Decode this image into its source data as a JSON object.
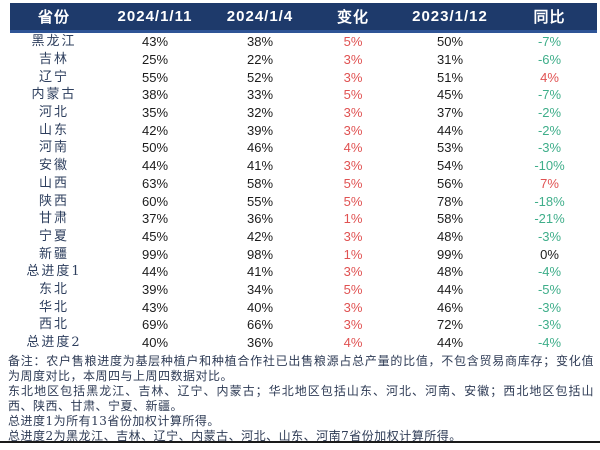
{
  "colors": {
    "header_bg": "#1e3a6b",
    "header_accent": "#2e5496",
    "header_text": "#ffffff",
    "ink": "#1c1c1c",
    "province_ink": "#2e3f5e",
    "note_ink": "#2e3b55",
    "red": "#e05252",
    "green": "#3fae8a"
  },
  "table": {
    "columns": [
      "省份",
      "2024/1/11",
      "2024/1/4",
      "变化",
      "2023/1/12",
      "同比"
    ],
    "rows": [
      {
        "province": "黑龙江",
        "current": "43%",
        "last_week": "38%",
        "change": "5%",
        "last_year": "50%",
        "yoy": "-7%",
        "yoy_color": "green"
      },
      {
        "province": "吉林",
        "current": "25%",
        "last_week": "22%",
        "change": "3%",
        "last_year": "31%",
        "yoy": "-6%",
        "yoy_color": "green"
      },
      {
        "province": "辽宁",
        "current": "55%",
        "last_week": "52%",
        "change": "3%",
        "last_year": "51%",
        "yoy": "4%",
        "yoy_color": "red"
      },
      {
        "province": "内蒙古",
        "current": "38%",
        "last_week": "33%",
        "change": "5%",
        "last_year": "45%",
        "yoy": "-7%",
        "yoy_color": "green"
      },
      {
        "province": "河北",
        "current": "35%",
        "last_week": "32%",
        "change": "3%",
        "last_year": "37%",
        "yoy": "-2%",
        "yoy_color": "green"
      },
      {
        "province": "山东",
        "current": "42%",
        "last_week": "39%",
        "change": "3%",
        "last_year": "44%",
        "yoy": "-2%",
        "yoy_color": "green"
      },
      {
        "province": "河南",
        "current": "50%",
        "last_week": "46%",
        "change": "4%",
        "last_year": "53%",
        "yoy": "-3%",
        "yoy_color": "green"
      },
      {
        "province": "安徽",
        "current": "44%",
        "last_week": "41%",
        "change": "3%",
        "last_year": "54%",
        "yoy": "-10%",
        "yoy_color": "green"
      },
      {
        "province": "山西",
        "current": "63%",
        "last_week": "58%",
        "change": "5%",
        "last_year": "56%",
        "yoy": "7%",
        "yoy_color": "red"
      },
      {
        "province": "陕西",
        "current": "60%",
        "last_week": "55%",
        "change": "5%",
        "last_year": "78%",
        "yoy": "-18%",
        "yoy_color": "green"
      },
      {
        "province": "甘肃",
        "current": "37%",
        "last_week": "36%",
        "change": "1%",
        "last_year": "58%",
        "yoy": "-21%",
        "yoy_color": "green"
      },
      {
        "province": "宁夏",
        "current": "45%",
        "last_week": "42%",
        "change": "3%",
        "last_year": "48%",
        "yoy": "-3%",
        "yoy_color": "green"
      },
      {
        "province": "新疆",
        "current": "99%",
        "last_week": "98%",
        "change": "1%",
        "last_year": "99%",
        "yoy": "0%",
        "yoy_color": "black"
      },
      {
        "province": "总进度1",
        "current": "44%",
        "last_week": "41%",
        "change": "3%",
        "last_year": "48%",
        "yoy": "-4%",
        "yoy_color": "green"
      },
      {
        "province": "东北",
        "current": "39%",
        "last_week": "34%",
        "change": "5%",
        "last_year": "44%",
        "yoy": "-5%",
        "yoy_color": "green"
      },
      {
        "province": "华北",
        "current": "43%",
        "last_week": "40%",
        "change": "3%",
        "last_year": "46%",
        "yoy": "-3%",
        "yoy_color": "green"
      },
      {
        "province": "西北",
        "current": "69%",
        "last_week": "66%",
        "change": "3%",
        "last_year": "72%",
        "yoy": "-3%",
        "yoy_color": "green"
      },
      {
        "province": "总进度2",
        "current": "40%",
        "last_week": "36%",
        "change": "4%",
        "last_year": "44%",
        "yoy": "-4%",
        "yoy_color": "green"
      }
    ]
  },
  "notes": [
    "备注：农户售粮进度为基层种植户和种植合作社已出售粮源占总产量的比值，不包含贸易商库存；变化值为周度对比，本周四与上周四数据对比。",
    "东北地区包括黑龙江、吉林、辽宁、内蒙古；华北地区包括山东、河北、河南、安徽；西北地区包括山西、陕西、甘肃、宁夏、新疆。",
    "总进度1为所有13省份加权计算所得。",
    "总进度2为黑龙江、吉林、辽宁、内蒙古、河北、山东、河南7省份加权计算所得。"
  ]
}
